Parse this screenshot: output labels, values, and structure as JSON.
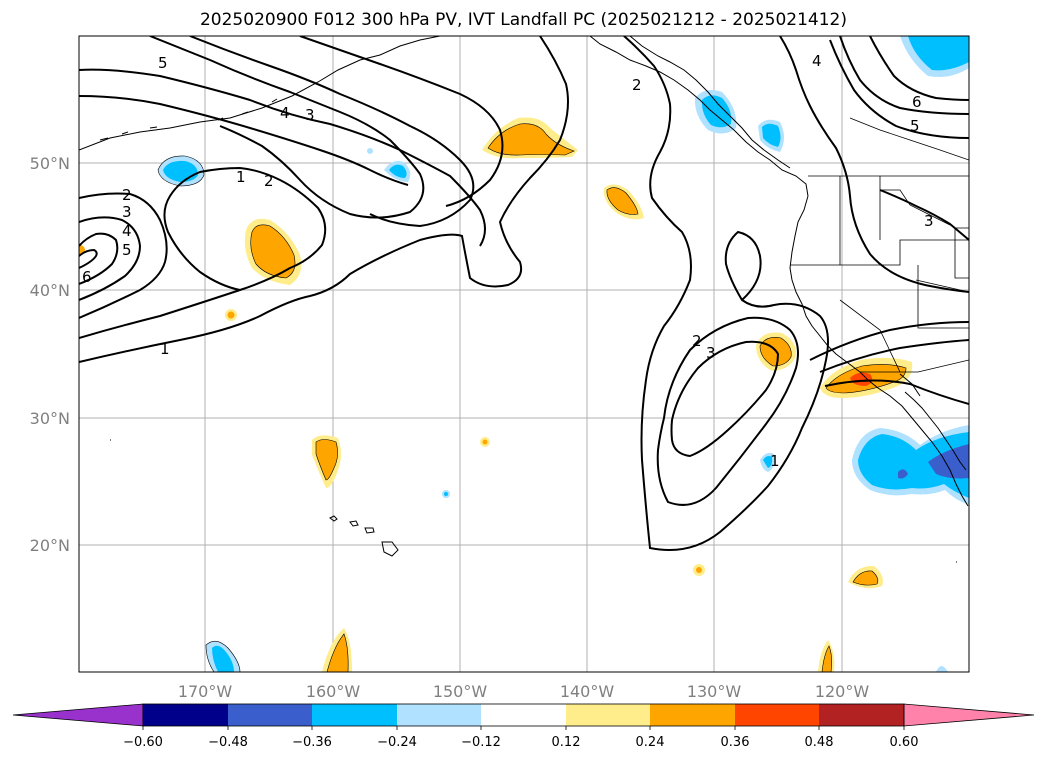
{
  "title": "2025020900 F012 300 hPa PV, IVT Landfall PC (2025021212 - 2025021412)",
  "map": {
    "lat_labels": [
      "50°N",
      "40°N",
      "30°N",
      "20°N"
    ],
    "lon_labels": [
      "170°W",
      "160°W",
      "150°W",
      "140°W",
      "130°W",
      "120°W"
    ],
    "contour_labels": [
      "5",
      "4",
      "3",
      "2",
      "1",
      "2",
      "3",
      "4",
      "5",
      "6",
      "1",
      "2",
      "3",
      "1",
      "2",
      "4",
      "6",
      "5",
      "3"
    ]
  },
  "colorbar": {
    "colors": [
      "#9932cc",
      "#00008b",
      "#3a5fcd",
      "#00bfff",
      "#b0e2ff",
      "#ffffff",
      "#ffec8b",
      "#ffa500",
      "#ff4500",
      "#b22222",
      "#ff82ab"
    ],
    "labels": [
      "−0.60",
      "−0.48",
      "−0.36",
      "−0.24",
      "−0.12",
      "0.12",
      "0.24",
      "0.36",
      "0.48",
      "0.60"
    ]
  }
}
